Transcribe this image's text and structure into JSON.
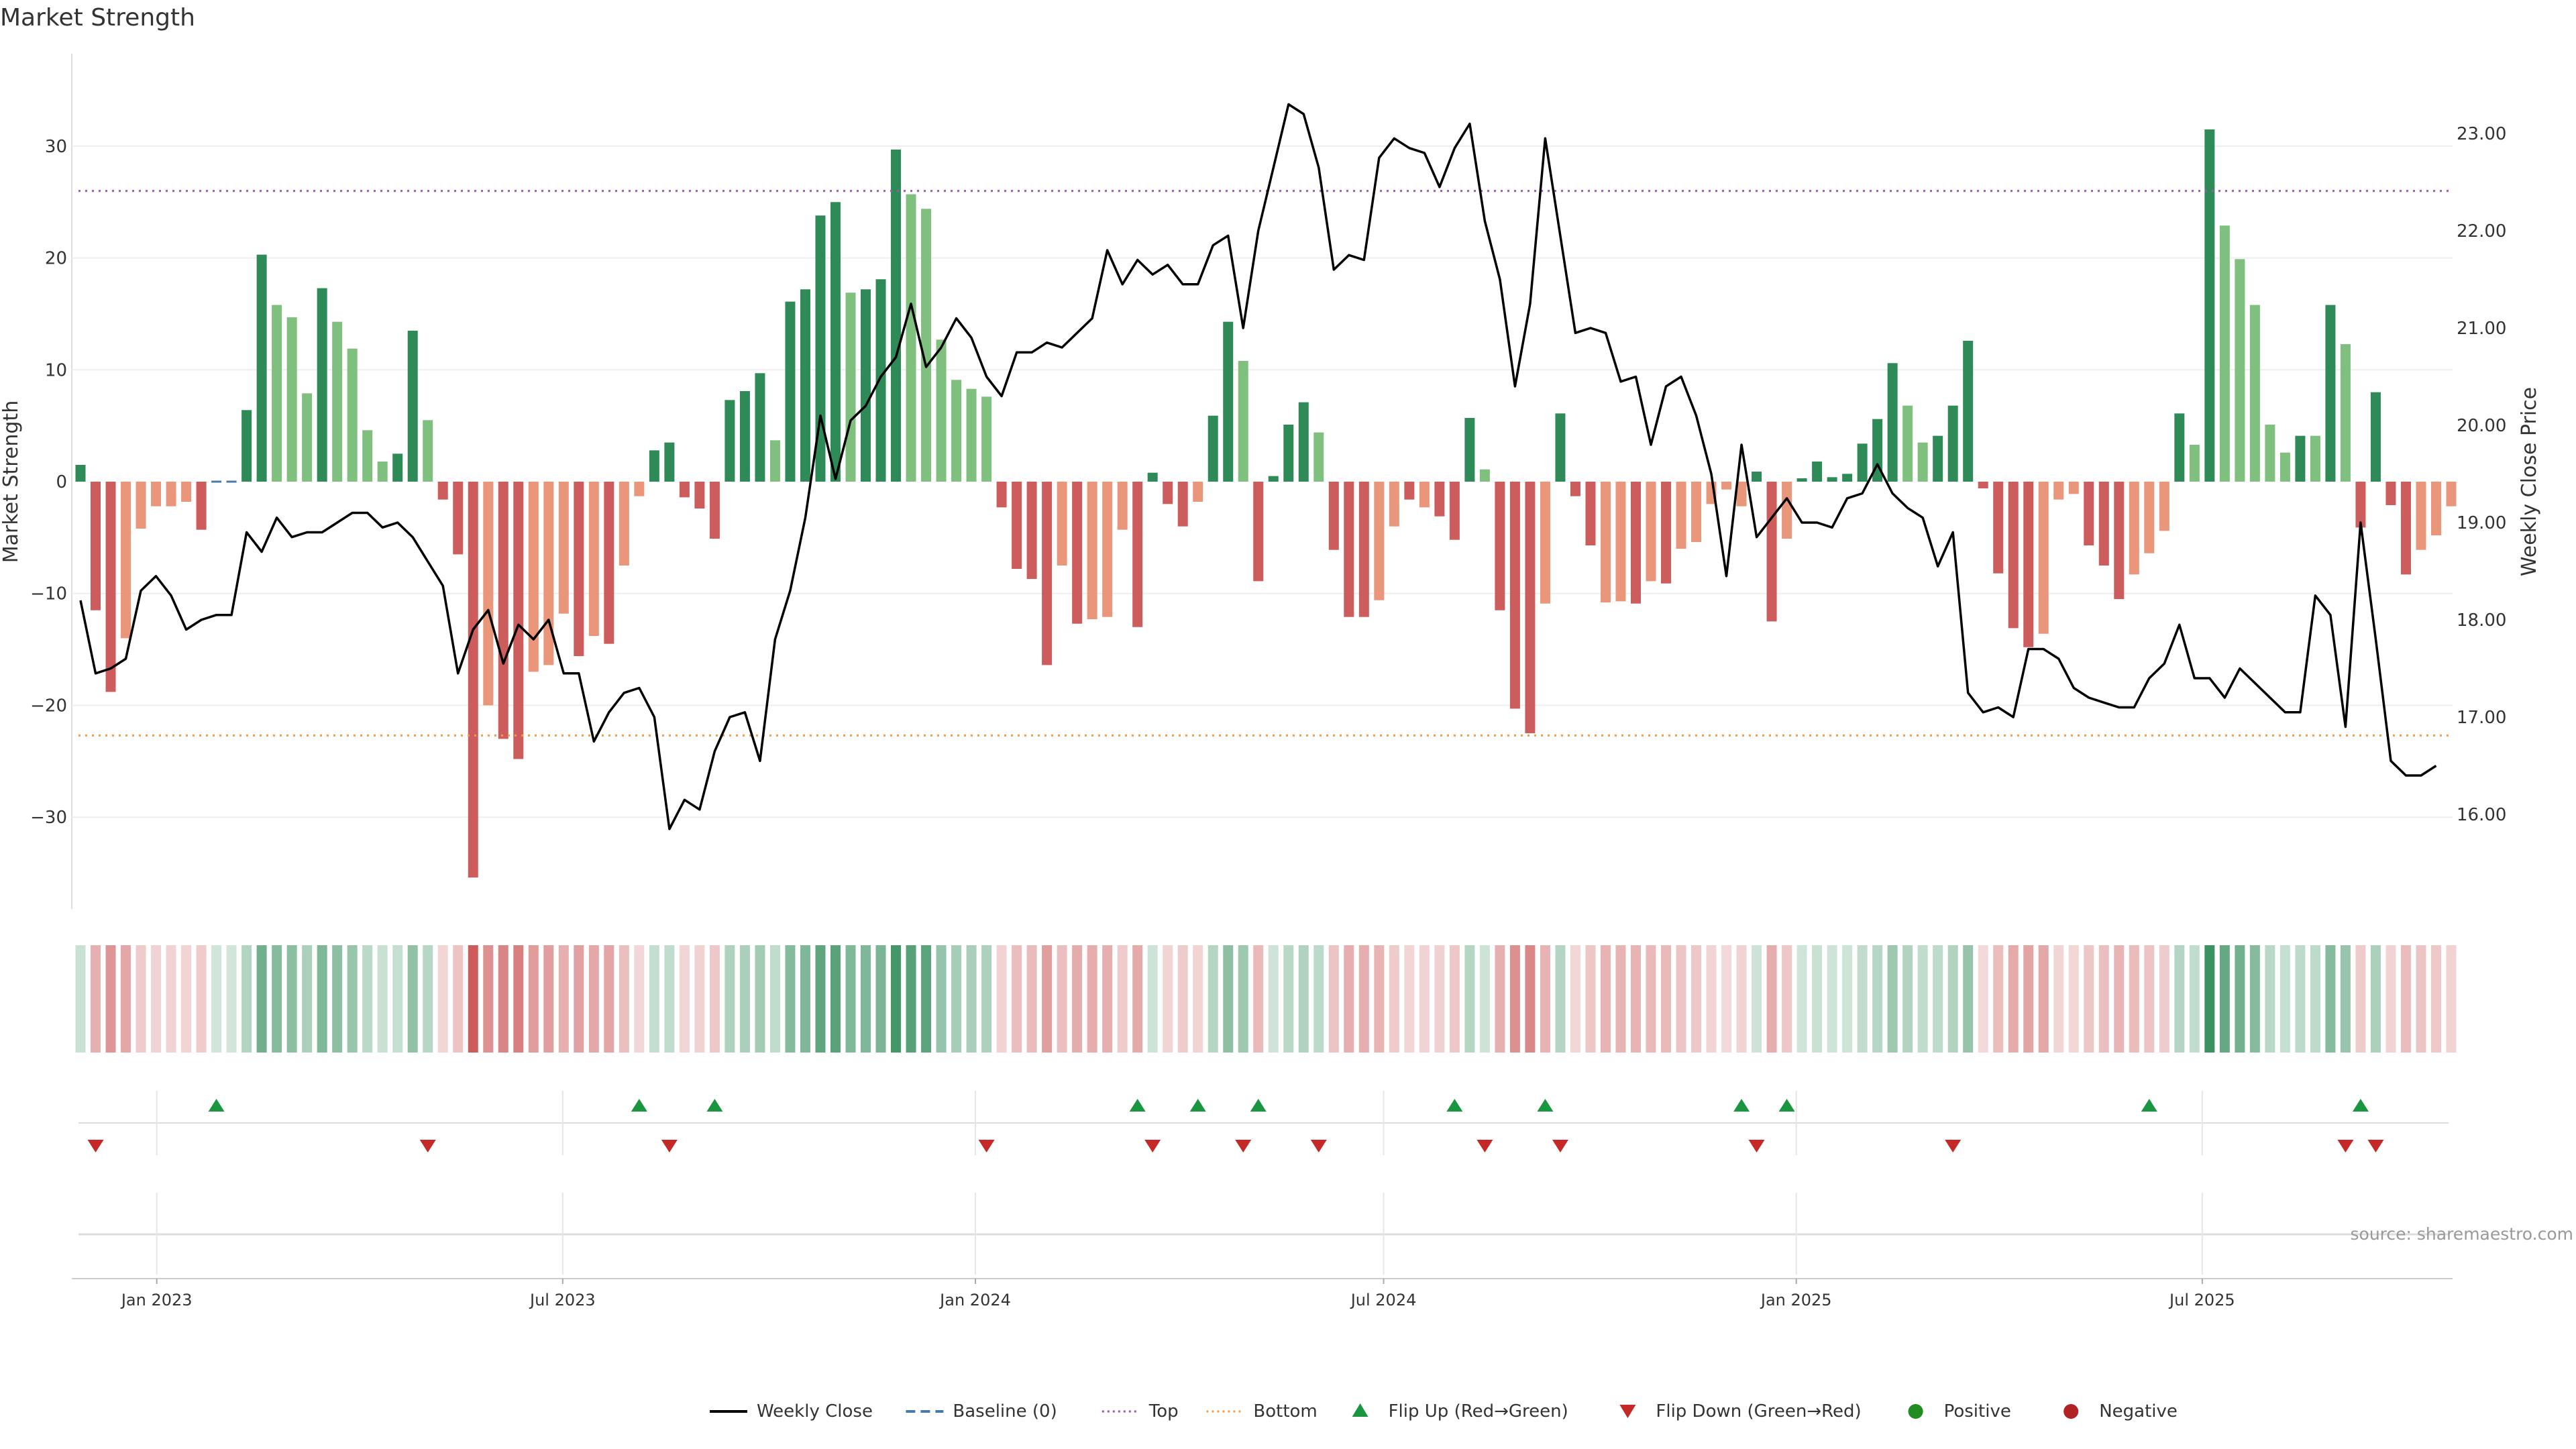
{
  "title": "Market Strength",
  "source": "source: sharemaestro.com",
  "colors": {
    "strong_green": "#2e8b57",
    "light_green": "#7fc07f",
    "strong_red": "#cd5c5c",
    "light_red": "#e9967a",
    "close_line": "#000000",
    "baseline": "#4a7aa8",
    "top": "#9b59b6",
    "bottom": "#f39c4a",
    "flip_up": "#1a9641",
    "flip_down": "#c62828",
    "positive": "#228b22",
    "negative": "#b22222"
  },
  "chart_data": {
    "type": "bar+line",
    "x_axis": {
      "ticks": [
        "Jan 2023",
        "Jul 2023",
        "Jan 2024",
        "Jul 2024",
        "Jan 2025",
        "Jul 2025"
      ],
      "range": [
        "2022-11-28",
        "2025-10-20"
      ],
      "frequency": "weekly"
    },
    "y_left": {
      "label": "Market Strength",
      "ticks": [
        30,
        20,
        10,
        0,
        -10,
        -20,
        -30
      ],
      "range": [
        -38,
        38
      ]
    },
    "y_right": {
      "label": "Weekly Close Price",
      "ticks": [
        "23.00",
        "22.00",
        "21.00",
        "20.00",
        "19.00",
        "18.00",
        "17.00",
        "16.00"
      ],
      "range": [
        15.2,
        23.7
      ]
    },
    "top_line": 26,
    "bottom_line": -22.7,
    "strength": [
      1.5,
      -11.5,
      -18.8,
      -14,
      -4.2,
      -2.2,
      -2.2,
      -1.8,
      -4.3,
      0,
      0,
      6.4,
      20.3,
      15.8,
      14.7,
      7.9,
      17.3,
      14.3,
      11.9,
      4.6,
      1.8,
      2.5,
      13.5,
      5.5,
      -1.6,
      -6.5,
      -35.4,
      -20,
      -23,
      -24.8,
      -17,
      -16.4,
      -11.8,
      -15.6,
      -13.8,
      -14.5,
      -7.5,
      -1.3,
      2.8,
      3.5,
      -1.4,
      -2.4,
      -5.1,
      7.3,
      8.1,
      9.7,
      3.7,
      16.1,
      17.2,
      23.8,
      25,
      16.9,
      17.2,
      18.1,
      29.7,
      25.7,
      24.4,
      12.7,
      9.1,
      8.3,
      7.6,
      -2.3,
      -7.8,
      -8.7,
      -16.4,
      -7.5,
      -12.7,
      -12.3,
      -12.1,
      -4.3,
      -13,
      0.8,
      -2,
      -4,
      -1.8,
      5.9,
      14.3,
      10.8,
      -8.9,
      0.5,
      5.1,
      7.1,
      4.4,
      -6.1,
      -12.1,
      -12.1,
      -10.6,
      -4,
      -1.6,
      -2.3,
      -3.1,
      -5.2,
      5.7,
      1.1,
      -11.5,
      -20.3,
      -22.5,
      -10.9,
      6.1,
      -1.3,
      -5.7,
      -10.8,
      -10.7,
      -10.9,
      -8.9,
      -9.1,
      -6,
      -5.4,
      -2,
      -0.7,
      -2.2,
      0.9,
      -12.5,
      -5.1,
      0.3,
      1.8,
      0.4,
      0.7,
      3.4,
      5.6,
      10.6,
      6.8,
      3.5,
      4.1,
      6.8,
      12.6,
      -0.6,
      -8.2,
      -13.1,
      -14.8,
      -13.6,
      -1.6,
      -1.1,
      -5.7,
      -7.5,
      -10.5,
      -8.3,
      -6.4,
      -4.4,
      6.1,
      3.3,
      31.5,
      22.9,
      19.9,
      15.8,
      5.1,
      2.6,
      4.1,
      4.1,
      15.8,
      12.3,
      -4.1,
      8,
      -2.1,
      -8.3,
      -6.1,
      -4.8,
      -2.2
    ],
    "bar_color_class": [
      "G",
      "R",
      "R",
      "r",
      "r",
      "r",
      "r",
      "r",
      "R",
      "G",
      "G",
      "G",
      "G",
      "g",
      "g",
      "g",
      "G",
      "g",
      "g",
      "g",
      "g",
      "G",
      "G",
      "g",
      "R",
      "R",
      "R",
      "r",
      "R",
      "R",
      "r",
      "r",
      "r",
      "R",
      "r",
      "R",
      "r",
      "r",
      "G",
      "G",
      "R",
      "R",
      "R",
      "G",
      "G",
      "G",
      "g",
      "G",
      "G",
      "G",
      "G",
      "g",
      "G",
      "G",
      "G",
      "g",
      "g",
      "g",
      "g",
      "g",
      "g",
      "R",
      "R",
      "R",
      "R",
      "r",
      "R",
      "r",
      "r",
      "r",
      "R",
      "G",
      "R",
      "R",
      "r",
      "G",
      "G",
      "g",
      "R",
      "G",
      "G",
      "G",
      "g",
      "R",
      "R",
      "R",
      "r",
      "r",
      "R",
      "r",
      "R",
      "R",
      "G",
      "g",
      "R",
      "R",
      "R",
      "r",
      "G",
      "R",
      "R",
      "r",
      "r",
      "R",
      "r",
      "R",
      "r",
      "r",
      "r",
      "r",
      "r",
      "G",
      "R",
      "r",
      "G",
      "G",
      "G",
      "G",
      "G",
      "G",
      "G",
      "g",
      "g",
      "G",
      "G",
      "G",
      "R",
      "R",
      "R",
      "R",
      "r",
      "r",
      "r",
      "R",
      "R",
      "R",
      "r",
      "r",
      "r",
      "G",
      "g",
      "G",
      "g",
      "g",
      "g",
      "g",
      "g",
      "G",
      "g",
      "G",
      "g",
      "R",
      "G",
      "R",
      "R",
      "r",
      "r",
      "r"
    ],
    "weekly_close": [
      18.2,
      17.45,
      17.5,
      17.6,
      18.3,
      18.45,
      18.25,
      17.9,
      18,
      18.05,
      18.05,
      18.9,
      18.7,
      19.05,
      18.85,
      18.9,
      18.9,
      19,
      19.1,
      19.1,
      18.95,
      19,
      18.85,
      18.6,
      18.35,
      17.45,
      17.9,
      18.1,
      17.55,
      17.95,
      17.8,
      18,
      17.45,
      17.45,
      16.75,
      17.05,
      17.25,
      17.3,
      17,
      15.85,
      16.15,
      16.05,
      16.65,
      17,
      17.05,
      16.55,
      17.8,
      18.3,
      19.05,
      20.1,
      19.45,
      20.05,
      20.2,
      20.5,
      20.7,
      21.25,
      20.6,
      20.8,
      21.1,
      20.9,
      20.5,
      20.3,
      20.75,
      20.75,
      20.85,
      20.8,
      20.95,
      21.1,
      21.8,
      21.45,
      21.7,
      21.55,
      21.65,
      21.45,
      21.45,
      21.85,
      21.95,
      21,
      22,
      22.65,
      23.3,
      23.2,
      22.65,
      21.6,
      21.75,
      21.7,
      22.75,
      22.95,
      22.85,
      22.8,
      22.45,
      22.85,
      23.1,
      22.1,
      21.5,
      20.4,
      21.25,
      22.95,
      21.95,
      20.95,
      21,
      20.95,
      20.45,
      20.5,
      19.8,
      20.4,
      20.5,
      20.1,
      19.5,
      18.45,
      19.8,
      18.85,
      19.05,
      19.25,
      19,
      19,
      18.95,
      19.25,
      19.3,
      19.6,
      19.3,
      19.15,
      19.05,
      18.55,
      18.9,
      17.25,
      17.05,
      17.1,
      17,
      17.7,
      17.7,
      17.6,
      17.3,
      17.2,
      17.15,
      17.1,
      17.1,
      17.4,
      17.55,
      17.95,
      17.4,
      17.4,
      17.2,
      17.5,
      17.35,
      17.2,
      17.05,
      17.05,
      18.25,
      18.05,
      16.9,
      19,
      17.8,
      16.55,
      16.4,
      16.4,
      16.5
    ],
    "flip_up_index": [
      9,
      37,
      42,
      70,
      74,
      78,
      91,
      97,
      110,
      113,
      137,
      151
    ],
    "flip_down_index": [
      1,
      23,
      39,
      60,
      71,
      77,
      82,
      93,
      98,
      111,
      124,
      150,
      152
    ]
  },
  "legend": [
    {
      "label": "Weekly Close",
      "icon": "solid-line"
    },
    {
      "label": "Baseline (0)",
      "icon": "dashed-line"
    },
    {
      "label": "Top",
      "icon": "dotted-line"
    },
    {
      "label": "Bottom",
      "icon": "dotted-line"
    },
    {
      "label": "Flip Up (Red→Green)",
      "icon": "triangle-up"
    },
    {
      "label": "Flip Down (Green→Red)",
      "icon": "triangle-down"
    },
    {
      "label": "Positive",
      "icon": "circle"
    },
    {
      "label": "Negative",
      "icon": "circle"
    }
  ]
}
